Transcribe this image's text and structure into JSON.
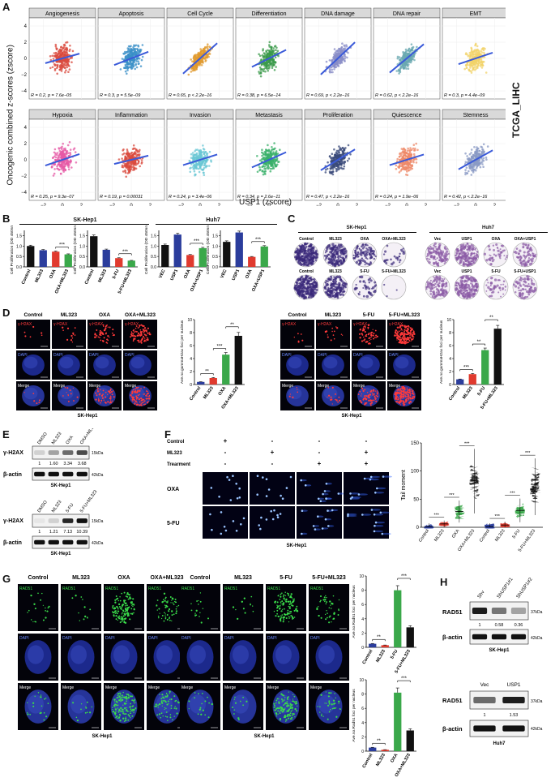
{
  "panelA": {
    "label": "A",
    "ylabel": "Oncogenic combined z-scores (zscore)",
    "xlabel": "USP1 (zscore)",
    "side_label": "TCGA_LIHC",
    "yticks": [
      "4",
      "2",
      "0",
      "−2",
      "−4"
    ],
    "xticks": [
      "−2",
      "0",
      "2"
    ],
    "panels": [
      {
        "title": "Angiogenesis",
        "stat": "R = 0.2, p = 7.6e−05",
        "color": "#d94a3d",
        "slope": 0.25
      },
      {
        "title": "Apoptosis",
        "stat": "R = 0.3, p = 5.5e−09",
        "color": "#3a8fc7",
        "slope": 0.35
      },
      {
        "title": "Cell Cycle",
        "stat": "R = 0.65, p < 2.2e−16",
        "color": "#e09a2d",
        "slope": 0.8
      },
      {
        "title": "Differentiation",
        "stat": "R = 0.38, p = 6.5e−14",
        "color": "#3a9a4a",
        "slope": 0.45
      },
      {
        "title": "DNA damage",
        "stat": "R = 0.69, p < 2.2e−16",
        "color": "#8a8ec7",
        "slope": 0.85
      },
      {
        "title": "DNA repair",
        "stat": "R = 0.62, p < 2.2e−16",
        "color": "#6aa8b0",
        "slope": 0.75
      },
      {
        "title": "EMT",
        "stat": "R = 0.3, p = 4.4e−09",
        "color": "#f2d36a",
        "slope": 0.3
      },
      {
        "title": "Hypoxia",
        "stat": "R = 0.25, p = 9.3e−07",
        "color": "#e65aa5",
        "slope": 0.3
      },
      {
        "title": "Inflammation",
        "stat": "R = 0.19, p = 0.00031",
        "color": "#d94a3d",
        "slope": 0.22
      },
      {
        "title": "Invasion",
        "stat": "R = 0.24, p = 3.4e−06",
        "color": "#6ac7d4",
        "slope": 0.28
      },
      {
        "title": "Metastasis",
        "stat": "R = 0.34, p = 2.6e−11",
        "color": "#3ab06a",
        "slope": 0.4
      },
      {
        "title": "Proliferation",
        "stat": "R = 0.47, p < 2.2e−16",
        "color": "#3a4a7a",
        "slope": 0.55
      },
      {
        "title": "Quiescence",
        "stat": "R = 0.24, p = 1.9e−06",
        "color": "#ee8a6a",
        "slope": 0.28
      },
      {
        "title": "Stemness",
        "stat": "R = 0.42, p < 2.2e−16",
        "color": "#8a9ac4",
        "slope": 0.5
      }
    ]
  },
  "panelB": {
    "label": "B",
    "group1": "SK-Hep1",
    "group2": "Huh7",
    "ylabel": "Cell Proliferation (OD 450nm)",
    "yticks": [
      "1.5",
      "1.0",
      "0.5",
      "0.0"
    ],
    "charts": [
      {
        "categories": [
          "Control",
          "ML323",
          "OXA",
          "OXA+ML323"
        ],
        "values": [
          1.0,
          0.8,
          0.73,
          0.6
        ],
        "colors": [
          "#111111",
          "#2b3d9c",
          "#e03a2e",
          "#3aa84a"
        ],
        "sig": "***"
      },
      {
        "categories": [
          "Control",
          "ML323",
          "5-FU",
          "5-FU+ML323"
        ],
        "values": [
          1.47,
          0.82,
          0.42,
          0.3
        ],
        "colors": [
          "#111111",
          "#2b3d9c",
          "#e03a2e",
          "#3aa84a"
        ],
        "sig": "***"
      },
      {
        "categories": [
          "VEC",
          "USP1",
          "OXA",
          "OXA+USP1"
        ],
        "values": [
          1.05,
          1.55,
          0.57,
          0.9
        ],
        "colors": [
          "#111111",
          "#2b3d9c",
          "#e03a2e",
          "#3aa84a"
        ],
        "sig": "***"
      },
      {
        "categories": [
          "VEC",
          "USP1",
          "OXA",
          "OXA+USP1"
        ],
        "values": [
          1.2,
          1.65,
          0.48,
          0.98
        ],
        "colors": [
          "#111111",
          "#2b3d9c",
          "#e03a2e",
          "#3aa84a"
        ],
        "sig": "***"
      }
    ]
  },
  "panelC": {
    "label": "C",
    "group1": "SK-Hep1",
    "group2": "Huh7",
    "row1_left": [
      "Control",
      "ML323",
      "OXA",
      "OXA+ML323"
    ],
    "row2_left": [
      "Control",
      "ML323",
      "5-FU",
      "5-FU+ML323"
    ],
    "row1_right": [
      "Vec",
      "USP1",
      "OXA",
      "OXA+USP1"
    ],
    "row2_right": [
      "Vec",
      "USP1",
      "5-FU",
      "5-FU+USP1"
    ]
  },
  "panelD": {
    "label": "D",
    "left_cols": [
      "Control",
      "ML323",
      "OXA",
      "OXA+ML323"
    ],
    "right_cols": [
      "Control",
      "ML323",
      "5-FU",
      "5-FU+ML323"
    ],
    "rows": [
      "γ-H2AX",
      "DAPI",
      "Merge"
    ],
    "caption": "SK-Hep1",
    "ylabel": "Ave.no.gammaH2ax foci per nucleus",
    "chart_left": {
      "categories": [
        "Control",
        "ML323",
        "OXA",
        "OXA+ML323"
      ],
      "values": [
        0.4,
        1.0,
        4.6,
        7.5
      ],
      "colors": [
        "#2b3d9c",
        "#e03a2e",
        "#3aa84a",
        "#111111"
      ],
      "sigs": [
        "**",
        "***",
        "**"
      ],
      "yticks": [
        "10",
        "8",
        "6",
        "4",
        "2",
        "0"
      ]
    },
    "chart_right": {
      "categories": [
        "Control",
        "ML323",
        "5-FU",
        "5-FU+ML323"
      ],
      "values": [
        0.8,
        1.6,
        5.3,
        8.6
      ],
      "colors": [
        "#2b3d9c",
        "#e03a2e",
        "#3aa84a",
        "#111111"
      ],
      "sigs": [
        "***",
        "**",
        "**"
      ],
      "yticks": [
        "10",
        "8",
        "6",
        "4",
        "2",
        "0"
      ]
    }
  },
  "panelE": {
    "label": "E",
    "blot1_lanes": [
      "DMSO",
      "ML323",
      "OXA",
      "OXA+ML323"
    ],
    "blot1_values": [
      "1",
      "1.60",
      "3.34",
      "3.68"
    ],
    "blot2_lanes": [
      "DMSO",
      "ML323",
      "5-FU",
      "5-FU+ML323"
    ],
    "blot2_values": [
      "1",
      "1.21",
      "7.13",
      "10.39"
    ],
    "protein1": "γ-H2AX",
    "protein2": "β-actin",
    "kda1": "15kDa",
    "kda2": "42kDa",
    "caption": "SK-Hep1"
  },
  "panelF": {
    "label": "F",
    "row_labels": [
      "Control",
      "ML323",
      "Trearment"
    ],
    "signs": [
      [
        "+",
        "-",
        "-",
        "-"
      ],
      [
        "-",
        "+",
        "-",
        "+"
      ],
      [
        "-",
        "-",
        "+",
        "+"
      ]
    ],
    "img_rows": [
      "OXA",
      "5-FU"
    ],
    "caption": "SK-Hep1",
    "ylabel": "Tail moment",
    "yticks": [
      "150",
      "100",
      "50",
      "0"
    ],
    "categories": [
      "Control",
      "ML323",
      "OXA",
      "OXA+ML323",
      "Control",
      "ML323",
      "5-FU",
      "5-FU+ML323"
    ],
    "medians": [
      1,
      6,
      28,
      82,
      1,
      4,
      30,
      72
    ],
    "colors": [
      "#2b3d9c",
      "#e03a2e",
      "#3aa84a",
      "#111111",
      "#2b3d9c",
      "#e03a2e",
      "#3aa84a",
      "#111111"
    ],
    "sig": "***"
  },
  "panelG": {
    "label": "G",
    "left_cols": [
      "Control",
      "ML323",
      "OXA",
      "OXA+ML323"
    ],
    "right_cols": [
      "Control",
      "ML323",
      "5-FU",
      "5-FU+ML323"
    ],
    "rows": [
      "RAD51",
      "DAPI",
      "Merge"
    ],
    "caption": "SK-Hep1",
    "ylabel": "Ave.no.Rad51 foci per nucleus",
    "chart_top": {
      "categories": [
        "Control",
        "ML323",
        "5-FU",
        "5-FU+ML323"
      ],
      "values": [
        0.5,
        0.3,
        8.0,
        2.8
      ],
      "colors": [
        "#2b3d9c",
        "#e03a2e",
        "#3aa84a",
        "#111111"
      ],
      "sigs": [
        "**",
        "***"
      ],
      "yticks": [
        "10",
        "8",
        "6",
        "4",
        "2",
        "0"
      ]
    },
    "chart_bottom": {
      "categories": [
        "Control",
        "ML323",
        "OXA",
        "OXA+ML323"
      ],
      "values": [
        0.5,
        0.2,
        8.2,
        2.9
      ],
      "colors": [
        "#2b3d9c",
        "#e03a2e",
        "#3aa84a",
        "#111111"
      ],
      "sigs": [
        "**",
        "***"
      ],
      "yticks": [
        "10",
        "8",
        "6",
        "4",
        "2",
        "0"
      ]
    }
  },
  "panelH": {
    "label": "H",
    "blot1_lanes": [
      "Shv",
      "ShUSP1#1",
      "ShUSP1#2"
    ],
    "blot1_values": [
      "1",
      "0.58",
      "0.36"
    ],
    "blot1_caption": "SK-Hep1",
    "blot2_lanes": [
      "Vec",
      "USP1"
    ],
    "blot2_values": [
      "1",
      "1.53"
    ],
    "blot2_caption": "Huh7",
    "protein1": "RAD51",
    "protein2": "β-actin",
    "kda1": "37kDa",
    "kda2": "42kDa"
  }
}
